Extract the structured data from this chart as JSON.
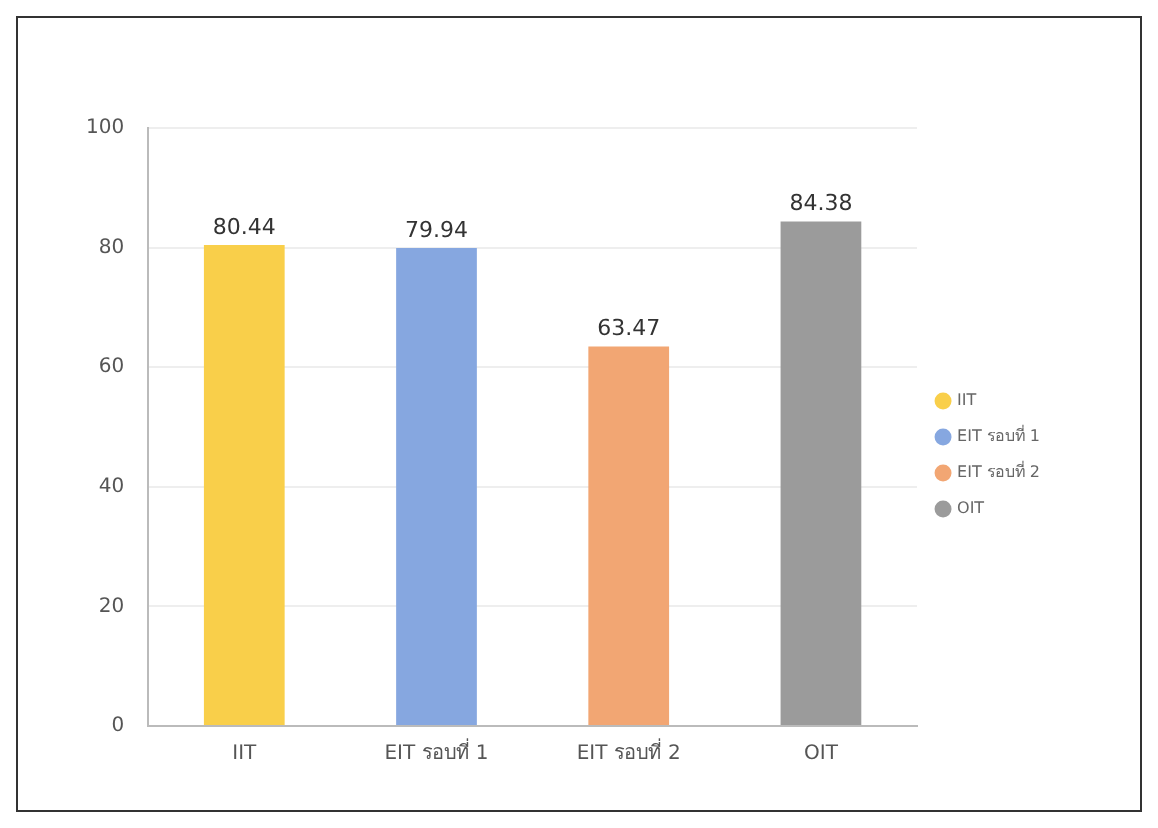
{
  "chart_data": {
    "type": "bar",
    "categories": [
      "IIT",
      "EIT รอบที่ 1",
      "EIT รอบที่ 2",
      "OIT"
    ],
    "series": [
      {
        "name": "IIT",
        "color": "#f9cf4a",
        "values": [
          80.44,
          null,
          null,
          null
        ]
      },
      {
        "name": "EIT รอบที่ 1",
        "color": "#86a7e0",
        "values": [
          null,
          79.94,
          null,
          null
        ]
      },
      {
        "name": "EIT รอบที่ 2",
        "color": "#f2a673",
        "values": [
          null,
          null,
          63.47,
          null
        ]
      },
      {
        "name": "OIT",
        "color": "#9b9b9b",
        "values": [
          null,
          null,
          null,
          84.38
        ]
      }
    ],
    "ylim": [
      0,
      100
    ],
    "yticks": [
      0,
      20,
      40,
      60,
      80,
      100
    ],
    "grid": "y",
    "legend": "right",
    "data_labels": true
  }
}
